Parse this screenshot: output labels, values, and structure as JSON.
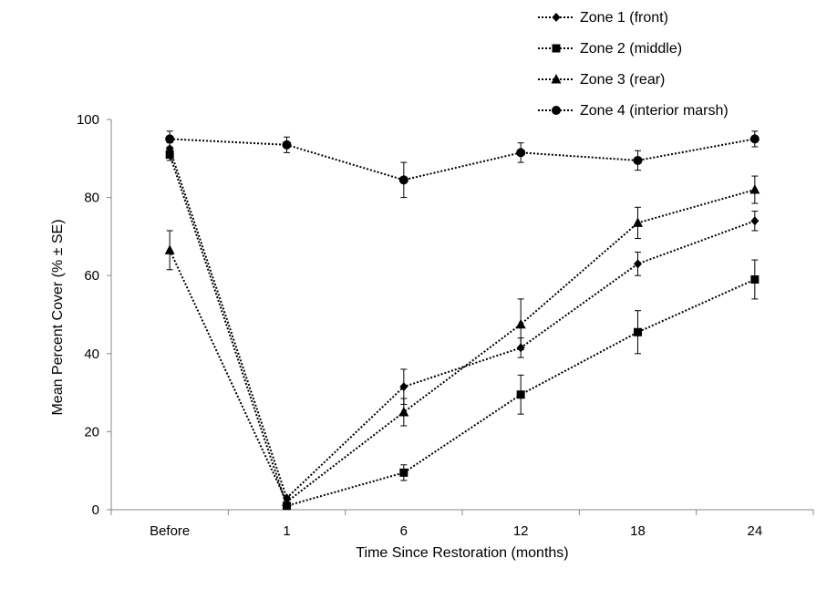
{
  "chart_data": {
    "type": "line",
    "categories": [
      "Before",
      "1",
      "6",
      "12",
      "18",
      "24"
    ],
    "xlabel": "Time Since Restoration (months)",
    "ylabel": "Mean Percent Cover (% ± SE)",
    "ylim": [
      0,
      100
    ],
    "yticks": [
      0,
      20,
      40,
      60,
      80,
      100
    ],
    "legend_position": "top-right",
    "line_style": "dotted",
    "color": "#000000",
    "series": [
      {
        "name": "Zone 1 (front)",
        "marker": "diamond",
        "values": [
          92.5,
          3,
          31.5,
          41.5,
          63,
          74
        ],
        "errors": [
          1.5,
          0.5,
          4.5,
          2.5,
          3,
          2.5
        ]
      },
      {
        "name": "Zone 2 (middle)",
        "marker": "square",
        "values": [
          91,
          1,
          9.5,
          29.5,
          45.5,
          59
        ],
        "errors": [
          1.5,
          0.5,
          2,
          5,
          5.5,
          5
        ]
      },
      {
        "name": "Zone 3 (rear)",
        "marker": "triangle",
        "values": [
          66.5,
          2,
          25,
          47.5,
          73.5,
          82
        ],
        "errors": [
          5,
          0.5,
          3.5,
          6.5,
          4,
          3.5
        ]
      },
      {
        "name": "Zone 4 (interior marsh)",
        "marker": "circle",
        "values": [
          95,
          93.5,
          84.5,
          91.5,
          89.5,
          95
        ],
        "errors": [
          2,
          2,
          4.5,
          2.5,
          2.5,
          2
        ]
      }
    ]
  }
}
